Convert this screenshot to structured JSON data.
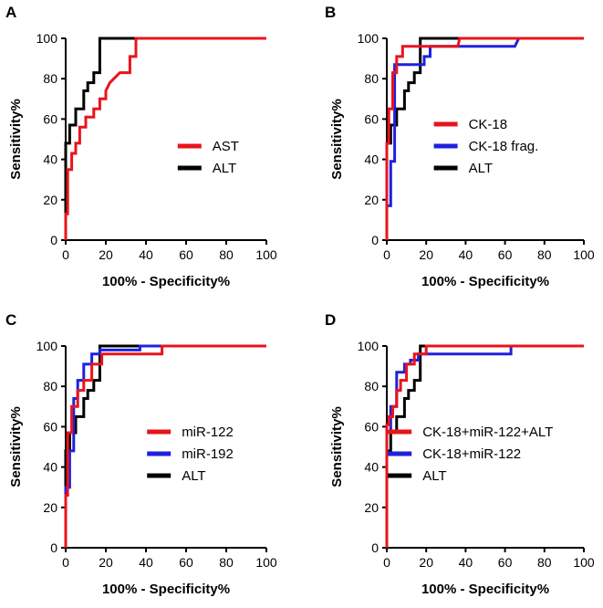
{
  "chart_data": [
    {
      "panel": "A",
      "type": "line",
      "xlabel": "100% - Specificity%",
      "ylabel": "Sensitivity%",
      "xlim": [
        0,
        100
      ],
      "ylim": [
        0,
        100
      ],
      "xticks": [
        "0",
        "20",
        "40",
        "60",
        "80",
        "100"
      ],
      "yticks": [
        "0",
        "20",
        "40",
        "60",
        "80",
        "100"
      ],
      "legend_position": "lower-right",
      "series": [
        {
          "name": "AST",
          "color": "#e8141c",
          "x": [
            0,
            0,
            1,
            1,
            3,
            3,
            5,
            5,
            7,
            7,
            10,
            10,
            14,
            14,
            17,
            17,
            20,
            20,
            22,
            24,
            27,
            32,
            32,
            35,
            35,
            100
          ],
          "y": [
            0,
            13,
            13,
            35,
            35,
            43,
            43,
            48,
            48,
            56,
            56,
            61,
            61,
            65,
            65,
            70,
            70,
            74,
            78,
            80,
            83,
            83,
            91,
            91,
            100,
            100
          ]
        },
        {
          "name": "ALT",
          "color": "#000000",
          "x": [
            0,
            0,
            2,
            2,
            5,
            5,
            9,
            9,
            11,
            11,
            14,
            14,
            17,
            17,
            100
          ],
          "y": [
            0,
            48,
            48,
            57,
            57,
            65,
            65,
            74,
            74,
            78,
            78,
            83,
            83,
            100,
            100
          ]
        }
      ]
    },
    {
      "panel": "B",
      "type": "line",
      "xlabel": "100% - Specificity%",
      "ylabel": "Sensitivity%",
      "xlim": [
        0,
        100
      ],
      "ylim": [
        0,
        100
      ],
      "xticks": [
        "0",
        "20",
        "40",
        "60",
        "80",
        "100"
      ],
      "yticks": [
        "0",
        "20",
        "40",
        "60",
        "80",
        "100"
      ],
      "legend_position": "lower-right",
      "series": [
        {
          "name": "CK-18",
          "color": "#e8141c",
          "x": [
            0,
            0,
            1,
            1,
            3,
            3,
            5,
            5,
            8,
            8,
            36,
            37,
            100
          ],
          "y": [
            0,
            48,
            48,
            65,
            65,
            83,
            83,
            91,
            91,
            96,
            96,
            100,
            100
          ]
        },
        {
          "name": "CK-18 frag.",
          "color": "#1e20e0",
          "x": [
            0,
            0,
            2,
            2,
            4,
            4,
            9,
            9,
            19,
            19,
            22,
            22,
            65,
            67,
            100
          ],
          "y": [
            0,
            17,
            17,
            39,
            39,
            87,
            87,
            87,
            87,
            91,
            91,
            96,
            96,
            100,
            100
          ]
        },
        {
          "name": "ALT",
          "color": "#000000",
          "x": [
            0,
            0,
            2,
            2,
            5,
            5,
            9,
            9,
            11,
            11,
            14,
            14,
            17,
            17,
            100
          ],
          "y": [
            0,
            48,
            48,
            57,
            57,
            65,
            65,
            74,
            74,
            78,
            78,
            83,
            83,
            100,
            100
          ]
        }
      ]
    },
    {
      "panel": "C",
      "type": "line",
      "xlabel": "100% - Specificity%",
      "ylabel": "Sensitivity%",
      "xlim": [
        0,
        100
      ],
      "ylim": [
        0,
        100
      ],
      "xticks": [
        "0",
        "20",
        "40",
        "60",
        "80",
        "100"
      ],
      "yticks": [
        "0",
        "20",
        "40",
        "60",
        "80",
        "100"
      ],
      "legend_position": "lower-right",
      "series": [
        {
          "name": "miR-122",
          "color": "#e8141c",
          "x": [
            0,
            0,
            1,
            1,
            3,
            3,
            6,
            6,
            9,
            9,
            13,
            13,
            18,
            18,
            48,
            48,
            100
          ],
          "y": [
            0,
            26,
            26,
            57,
            57,
            70,
            70,
            78,
            78,
            83,
            83,
            91,
            91,
            96,
            96,
            100,
            100
          ]
        },
        {
          "name": "miR-192",
          "color": "#1e20e0",
          "x": [
            0,
            0,
            2,
            2,
            4,
            4,
            6,
            6,
            9,
            9,
            13,
            13,
            17,
            17,
            37,
            37,
            100
          ],
          "y": [
            0,
            30,
            30,
            48,
            48,
            74,
            74,
            83,
            83,
            91,
            91,
            96,
            96,
            98,
            98,
            100,
            100
          ]
        },
        {
          "name": "ALT",
          "color": "#000000",
          "x": [
            0,
            0,
            2,
            2,
            5,
            5,
            9,
            9,
            11,
            11,
            14,
            14,
            17,
            17,
            100
          ],
          "y": [
            0,
            48,
            48,
            57,
            57,
            65,
            65,
            74,
            74,
            78,
            78,
            83,
            83,
            100,
            100
          ]
        }
      ]
    },
    {
      "panel": "D",
      "type": "line",
      "xlabel": "100% - Specificity%",
      "ylabel": "Sensitivity%",
      "xlim": [
        0,
        100
      ],
      "ylim": [
        0,
        100
      ],
      "xticks": [
        "0",
        "20",
        "40",
        "60",
        "80",
        "100"
      ],
      "yticks": [
        "0",
        "20",
        "40",
        "60",
        "80",
        "100"
      ],
      "legend_position": "lower-right",
      "series": [
        {
          "name": "CK-18+miR-122+ALT",
          "color": "#e8141c",
          "x": [
            0,
            0,
            1,
            1,
            3,
            3,
            5,
            5,
            7,
            7,
            10,
            10,
            14,
            14,
            20,
            20,
            100
          ],
          "y": [
            0,
            61,
            61,
            65,
            65,
            70,
            70,
            78,
            78,
            83,
            83,
            91,
            91,
            96,
            96,
            100,
            100
          ]
        },
        {
          "name": "CK-18+miR-122",
          "color": "#1e20e0",
          "x": [
            0,
            0,
            2,
            2,
            5,
            5,
            9,
            9,
            12,
            12,
            16,
            16,
            63,
            63,
            100
          ],
          "y": [
            0,
            57,
            57,
            70,
            70,
            87,
            87,
            91,
            91,
            93,
            93,
            96,
            96,
            100,
            100
          ]
        },
        {
          "name": "ALT",
          "color": "#000000",
          "x": [
            0,
            0,
            2,
            2,
            5,
            5,
            9,
            9,
            11,
            11,
            14,
            14,
            17,
            17,
            100
          ],
          "y": [
            0,
            48,
            48,
            57,
            57,
            65,
            65,
            74,
            74,
            78,
            78,
            83,
            83,
            100,
            100
          ]
        }
      ]
    }
  ]
}
